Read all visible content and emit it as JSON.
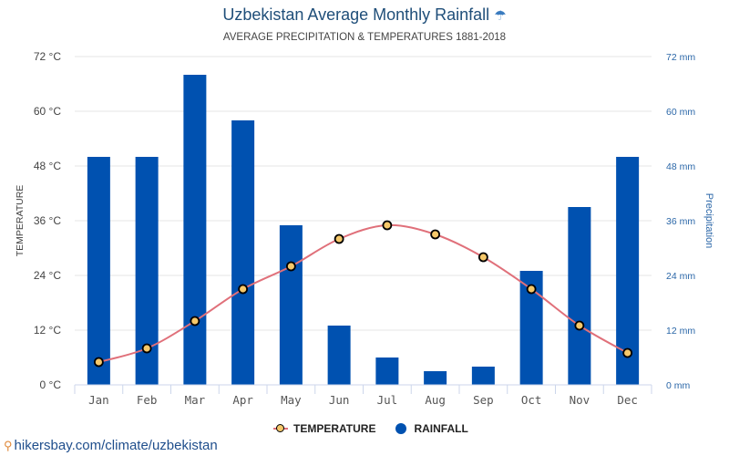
{
  "chart_data": {
    "type": "bar",
    "title": "Uzbekistan Average Monthly Rainfall",
    "title_icon": "umbrella-icon",
    "subtitle": "AVERAGE PRECIPITATION & TEMPERATURES 1881-2018",
    "categories": [
      "Jan",
      "Feb",
      "Mar",
      "Apr",
      "May",
      "Jun",
      "Jul",
      "Aug",
      "Sep",
      "Oct",
      "Nov",
      "Dec"
    ],
    "series": [
      {
        "name": "RAINFALL",
        "type": "bar",
        "axis": "right",
        "unit": "mm",
        "color": "#0051b0",
        "values": [
          50,
          50,
          68,
          58,
          35,
          13,
          6,
          3,
          4,
          25,
          39,
          50
        ]
      },
      {
        "name": "TEMPERATURE",
        "type": "line",
        "axis": "left",
        "unit": "°C",
        "color": "#e0707a",
        "marker_color": "#f5c86a",
        "values": [
          5,
          8,
          14,
          21,
          26,
          32,
          35,
          33,
          28,
          21,
          13,
          7
        ]
      }
    ],
    "y_left": {
      "label": "TEMPERATURE",
      "range": [
        0,
        72
      ],
      "ticks": [
        "0 °C",
        "12 °C",
        "24 °C",
        "36 °C",
        "48 °C",
        "60 °C",
        "72 °C"
      ]
    },
    "y_right": {
      "label": "Precipitation",
      "range": [
        0,
        72
      ],
      "ticks": [
        "0 mm",
        "12 mm",
        "24 mm",
        "36 mm",
        "48 mm",
        "60 mm",
        "72 mm"
      ]
    },
    "grid": true,
    "legend": {
      "position": "bottom-center",
      "entries": [
        "TEMPERATURE",
        "RAINFALL"
      ]
    }
  },
  "source": {
    "text": "hikersbay.com/climate/uzbekistan",
    "icon": "location-pin-icon"
  }
}
